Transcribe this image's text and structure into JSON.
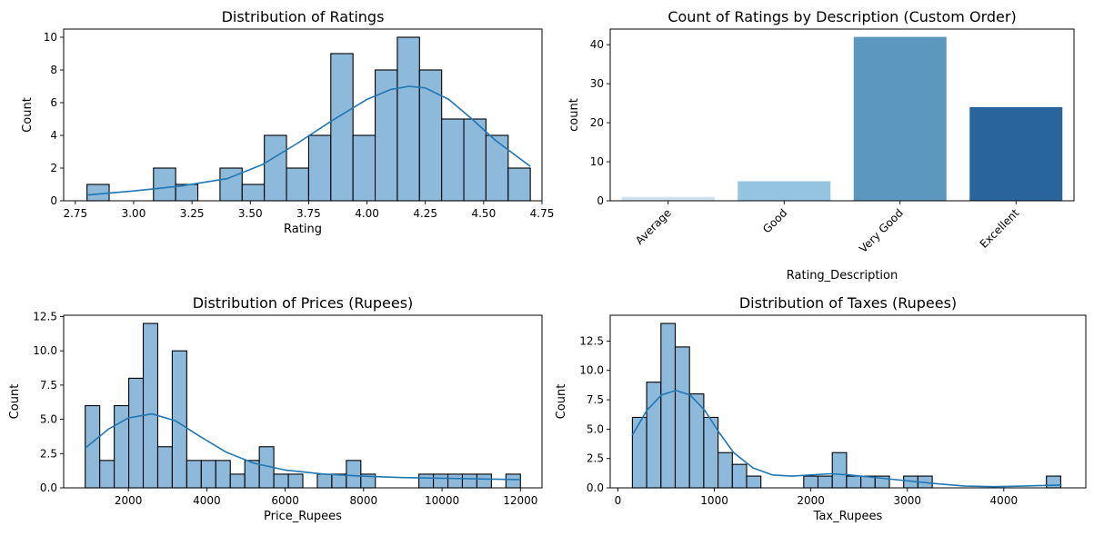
{
  "colors": {
    "hist_fill": "#8DB9DB",
    "hist_edge": "#000000",
    "kde": "#1f77b4",
    "bar_palette": [
      "#D0E1F2",
      "#94C4DF",
      "#5B97BF",
      "#2A649C"
    ]
  },
  "chart_data": [
    {
      "type": "bar",
      "subtype": "histogram",
      "title": "Distribution of Ratings",
      "xlabel": "Rating",
      "ylabel": "Count",
      "xlim": [
        2.7,
        4.75
      ],
      "ylim": [
        0,
        10.5
      ],
      "xticks": [
        2.75,
        3.0,
        3.25,
        3.5,
        3.75,
        4.0,
        4.25,
        4.5,
        4.75
      ],
      "xtick_labels": [
        "2.75",
        "3.00",
        "3.25",
        "3.50",
        "3.75",
        "4.00",
        "4.25",
        "4.50",
        "4.75"
      ],
      "yticks": [
        0,
        2,
        4,
        6,
        8,
        10
      ],
      "ytick_labels": [
        "0",
        "2",
        "4",
        "6",
        "8",
        "10"
      ],
      "bin_start": 2.8,
      "bin_width": 0.095,
      "counts": [
        1,
        0,
        0,
        2,
        1,
        0,
        2,
        1,
        4,
        2,
        4,
        9,
        4,
        8,
        10,
        8,
        5,
        5,
        4,
        2
      ],
      "kde": {
        "x": [
          2.8,
          3.0,
          3.2,
          3.4,
          3.55,
          3.7,
          3.85,
          4.0,
          4.1,
          4.18,
          4.25,
          4.35,
          4.45,
          4.55,
          4.7
        ],
        "y": [
          0.35,
          0.6,
          0.9,
          1.35,
          2.2,
          3.5,
          4.9,
          6.2,
          6.8,
          7.0,
          6.9,
          6.2,
          5.0,
          3.7,
          2.1
        ]
      },
      "grid": false
    },
    {
      "type": "bar",
      "title": "Count of Ratings by Description (Custom Order)",
      "xlabel": "Rating_Description",
      "ylabel": "count",
      "categories": [
        "Average",
        "Good",
        "Very Good",
        "Excellent"
      ],
      "values": [
        1,
        5,
        42,
        24
      ],
      "ylim": [
        0,
        44
      ],
      "yticks": [
        0,
        10,
        20,
        30,
        40
      ],
      "ytick_labels": [
        "0",
        "10",
        "20",
        "30",
        "40"
      ],
      "grid": false
    },
    {
      "type": "bar",
      "subtype": "histogram",
      "title": "Distribution of Prices (Rupees)",
      "xlabel": "Price_Rupees",
      "ylabel": "Count",
      "xlim": [
        350,
        12550
      ],
      "ylim": [
        0,
        12.6
      ],
      "xticks": [
        2000,
        4000,
        6000,
        8000,
        10000,
        12000
      ],
      "xtick_labels": [
        "2000",
        "4000",
        "6000",
        "8000",
        "10000",
        "12000"
      ],
      "yticks": [
        0,
        2.5,
        5.0,
        7.5,
        10.0,
        12.5
      ],
      "ytick_labels": [
        "0.0",
        "2.5",
        "5.0",
        "7.5",
        "10.0",
        "12.5"
      ],
      "bin_start": 900,
      "bin_width": 370,
      "counts": [
        6,
        2,
        6,
        8,
        12,
        3,
        10,
        2,
        2,
        2,
        1,
        2,
        3,
        1,
        1,
        0,
        1,
        1,
        2,
        1,
        0,
        0,
        0,
        1,
        1,
        1,
        1,
        1,
        0,
        1
      ],
      "kde": {
        "x": [
          900,
          1500,
          2000,
          2600,
          3200,
          3800,
          4500,
          5200,
          6000,
          7000,
          8000,
          9000,
          10000,
          11000,
          12000
        ],
        "y": [
          2.9,
          4.3,
          5.1,
          5.4,
          4.9,
          3.8,
          2.6,
          1.8,
          1.3,
          1.0,
          0.85,
          0.75,
          0.7,
          0.65,
          0.6
        ]
      },
      "grid": false
    },
    {
      "type": "bar",
      "subtype": "histogram",
      "title": "Distribution of Taxes (Rupees)",
      "xlabel": "Tax_Rupees",
      "ylabel": "Count",
      "xlim": [
        -80,
        4850
      ],
      "ylim": [
        0,
        14.7
      ],
      "xticks": [
        0,
        1000,
        2000,
        3000,
        4000
      ],
      "xtick_labels": [
        "0",
        "1000",
        "2000",
        "3000",
        "4000"
      ],
      "yticks": [
        0,
        2.5,
        5.0,
        7.5,
        10.0,
        12.5
      ],
      "ytick_labels": [
        "0.0",
        "2.5",
        "5.0",
        "7.5",
        "10.0",
        "12.5"
      ],
      "bin_start": 150,
      "bin_width": 148,
      "counts": [
        6,
        9,
        14,
        12,
        8,
        6,
        3,
        2,
        1,
        0,
        0,
        0,
        1,
        1,
        3,
        1,
        1,
        1,
        0,
        1,
        1,
        0,
        0,
        0,
        0,
        0,
        0,
        0,
        0,
        1
      ],
      "kde": {
        "x": [
          150,
          300,
          450,
          600,
          750,
          900,
          1050,
          1200,
          1400,
          1600,
          1800,
          2000,
          2200,
          2400,
          2700,
          3000,
          3300,
          3600,
          3900,
          4200,
          4600
        ],
        "y": [
          4.5,
          6.6,
          7.9,
          8.3,
          7.9,
          6.6,
          4.7,
          3.0,
          1.7,
          1.1,
          1.0,
          1.1,
          1.2,
          1.1,
          0.85,
          0.6,
          0.35,
          0.15,
          0.1,
          0.15,
          0.25
        ]
      },
      "grid": false
    }
  ]
}
